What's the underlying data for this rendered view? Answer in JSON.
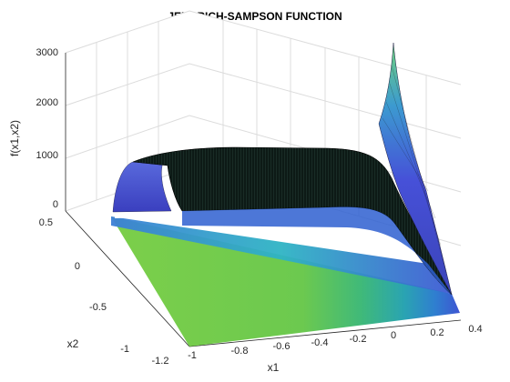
{
  "chart_data": {
    "type": "surface",
    "title": "JENNRICH-SAMPSON FUNCTION",
    "xlabel": "x1",
    "ylabel": "x2",
    "zlabel": "f(x1,x2)",
    "xlim": [
      -1.2,
      0.4
    ],
    "ylim": [
      -1,
      0.5
    ],
    "zlim": [
      0,
      3000
    ],
    "xticks": [
      "-1.2",
      "-1",
      "-0.8",
      "-0.6",
      "-0.4",
      "-0.2",
      "0",
      "0.2",
      "0.4"
    ],
    "yticks": [
      "-1",
      "-0.5",
      "0",
      "0.5"
    ],
    "zticks": [
      "0",
      "1000",
      "2000",
      "3000"
    ],
    "grid": true,
    "colormap": [
      "#7ccf4a",
      "#4cbf6a",
      "#28b39a",
      "#2a8fc2",
      "#3f5fd6",
      "#4a3db8"
    ],
    "mesh_edge_color": "#000000",
    "features": {
      "plateau_height": 1000,
      "peak_value": 3000,
      "peak_at": {
        "x1": 0.3,
        "x2": 0.5
      }
    }
  }
}
